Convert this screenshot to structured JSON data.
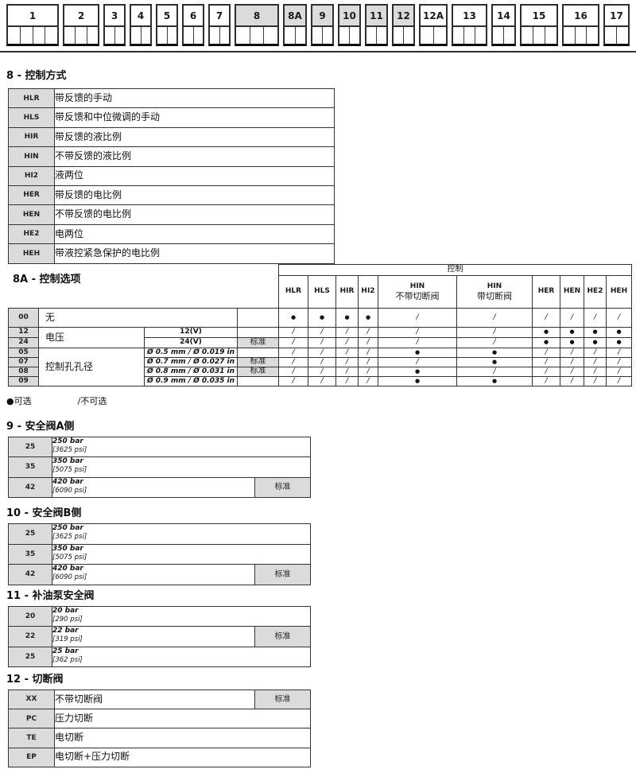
{
  "colors": {
    "shade": "#dbdbdb",
    "border": "#343434",
    "text": "#141414"
  },
  "ordering_diagram": {
    "boxes": [
      {
        "label": "1",
        "cells": 4,
        "shaded": false,
        "width": 66
      },
      {
        "label": "2",
        "cells": 3,
        "shaded": false,
        "width": 46
      },
      {
        "label": "3",
        "cells": 2,
        "shaded": false,
        "width": 28
      },
      {
        "label": "4",
        "cells": 2,
        "shaded": false,
        "width": 28
      },
      {
        "label": "5",
        "cells": 2,
        "shaded": false,
        "width": 28
      },
      {
        "label": "6",
        "cells": 2,
        "shaded": false,
        "width": 28
      },
      {
        "label": "7",
        "cells": 2,
        "shaded": false,
        "width": 28
      },
      {
        "label": "8",
        "cells": 3,
        "shaded": true,
        "width": 56
      },
      {
        "label": "8A",
        "cells": 2,
        "shaded": true,
        "width": 30
      },
      {
        "label": "9",
        "cells": 2,
        "shaded": true,
        "width": 29
      },
      {
        "label": "10",
        "cells": 2,
        "shaded": true,
        "width": 29
      },
      {
        "label": "11",
        "cells": 2,
        "shaded": true,
        "width": 29
      },
      {
        "label": "12",
        "cells": 2,
        "shaded": true,
        "width": 29
      },
      {
        "label": "12A",
        "cells": 2,
        "shaded": false,
        "width": 36
      },
      {
        "label": "13",
        "cells": 3,
        "shaded": false,
        "width": 45
      },
      {
        "label": "14",
        "cells": 2,
        "shaded": false,
        "width": 31
      },
      {
        "label": "15",
        "cells": 3,
        "shaded": false,
        "width": 48
      },
      {
        "label": "16",
        "cells": 3,
        "shaded": false,
        "width": 47
      },
      {
        "label": "17",
        "cells": 2,
        "shaded": false,
        "width": 33
      }
    ]
  },
  "section8": {
    "title": "8 - 控制方式",
    "rows": [
      {
        "code": "HLR",
        "desc": "带反馈的手动"
      },
      {
        "code": "HLS",
        "desc": "带反馈和中位微调的手动"
      },
      {
        "code": "HIR",
        "desc": "带反馈的液比例"
      },
      {
        "code": "HIN",
        "desc": "不带反馈的液比例"
      },
      {
        "code": "HI2",
        "desc": "液两位"
      },
      {
        "code": "HER",
        "desc": "带反馈的电比例"
      },
      {
        "code": "HEN",
        "desc": "不带反馈的电比例"
      },
      {
        "code": "HE2",
        "desc": "电两位"
      },
      {
        "code": "HEH",
        "desc": "带液控紧急保护的电比例"
      }
    ]
  },
  "section8a": {
    "title": "8A - 控制选项",
    "control_header": "控制",
    "standard_label": "标准",
    "columns": [
      {
        "label": "HLR",
        "sub": ""
      },
      {
        "label": "HLS",
        "sub": ""
      },
      {
        "label": "HIR",
        "sub": ""
      },
      {
        "label": "HI2",
        "sub": ""
      },
      {
        "label": "HIN",
        "sub": "不带切断阀"
      },
      {
        "label": "HIN",
        "sub": "带切断阀"
      },
      {
        "label": "HER",
        "sub": ""
      },
      {
        "label": "HEN",
        "sub": ""
      },
      {
        "label": "HE2",
        "sub": ""
      },
      {
        "label": "HEH",
        "sub": ""
      }
    ],
    "rows": [
      {
        "code": "00",
        "group": "无",
        "group_rowspan": 1,
        "value": "",
        "std": false,
        "marks": [
          "●",
          "●",
          "●",
          "●",
          "/",
          "/",
          "/",
          "/",
          "/",
          "/"
        ]
      },
      {
        "code": "12",
        "group": "电压",
        "group_rowspan": 2,
        "value": "12(V)",
        "std": false,
        "marks": [
          "/",
          "/",
          "/",
          "/",
          "/",
          "/",
          "●",
          "●",
          "●",
          "●"
        ]
      },
      {
        "code": "24",
        "group": "",
        "group_rowspan": 0,
        "value": "24(V)",
        "std": true,
        "marks": [
          "/",
          "/",
          "/",
          "/",
          "/",
          "/",
          "●",
          "●",
          "●",
          "●"
        ]
      },
      {
        "code": "05",
        "group": "控制孔孔径",
        "group_rowspan": 4,
        "value": "Ø 0.5 mm / Ø 0.019 in",
        "std": false,
        "marks": [
          "/",
          "/",
          "/",
          "/",
          "●",
          "●",
          "/",
          "/",
          "/",
          "/"
        ]
      },
      {
        "code": "07",
        "group": "",
        "group_rowspan": 0,
        "value": "Ø 0.7 mm / Ø 0.027 in",
        "std": true,
        "marks": [
          "/",
          "/",
          "/",
          "/",
          "/",
          "●",
          "/",
          "/",
          "/",
          "/"
        ]
      },
      {
        "code": "08",
        "group": "",
        "group_rowspan": 0,
        "value": "Ø 0.8 mm / Ø 0.031 in",
        "std": true,
        "marks": [
          "/",
          "/",
          "/",
          "/",
          "●",
          "/",
          "/",
          "/",
          "/",
          "/"
        ]
      },
      {
        "code": "09",
        "group": "",
        "group_rowspan": 0,
        "value": "Ø 0.9 mm / Ø 0.035 in",
        "std": false,
        "marks": [
          "/",
          "/",
          "/",
          "/",
          "●",
          "●",
          "/",
          "/",
          "/",
          "/"
        ]
      }
    ]
  },
  "legend": {
    "optional": "●可选",
    "not_available": "/不可选"
  },
  "section9": {
    "title": "9 - 安全阀A侧",
    "standard_label": "标准",
    "rows": [
      {
        "code": "25",
        "bar": "250 bar",
        "psi": "[3625 psi]",
        "std": false
      },
      {
        "code": "35",
        "bar": "350 bar",
        "psi": "[5075 psi]",
        "std": false
      },
      {
        "code": "42",
        "bar": "420 bar",
        "psi": "[6090 psi]",
        "std": true
      }
    ]
  },
  "section10": {
    "title": "10 - 安全阀B侧",
    "standard_label": "标准",
    "rows": [
      {
        "code": "25",
        "bar": "250 bar",
        "psi": "[3625 psi]",
        "std": false
      },
      {
        "code": "35",
        "bar": "350 bar",
        "psi": "[5075 psi]",
        "std": false
      },
      {
        "code": "42",
        "bar": "420 bar",
        "psi": "[6090 psi]",
        "std": true
      }
    ]
  },
  "section11": {
    "title": "11 - 补油泵安全阀",
    "standard_label": "标准",
    "rows": [
      {
        "code": "20",
        "bar": "20 bar",
        "psi": "[290 psi]",
        "std": false
      },
      {
        "code": "22",
        "bar": "22 bar",
        "psi": "[319 psi]",
        "std": true
      },
      {
        "code": "25",
        "bar": "25 bar",
        "psi": "[362 psi]",
        "std": false
      }
    ]
  },
  "section12": {
    "title": "12 - 切断阀",
    "standard_label": "标准",
    "rows": [
      {
        "code": "XX",
        "desc": "不带切断阀",
        "std": true
      },
      {
        "code": "PC",
        "desc": "压力切断",
        "std": false
      },
      {
        "code": "TE",
        "desc": "电切断",
        "std": false
      },
      {
        "code": "EP",
        "desc": "电切断+压力切断",
        "std": false
      }
    ]
  }
}
